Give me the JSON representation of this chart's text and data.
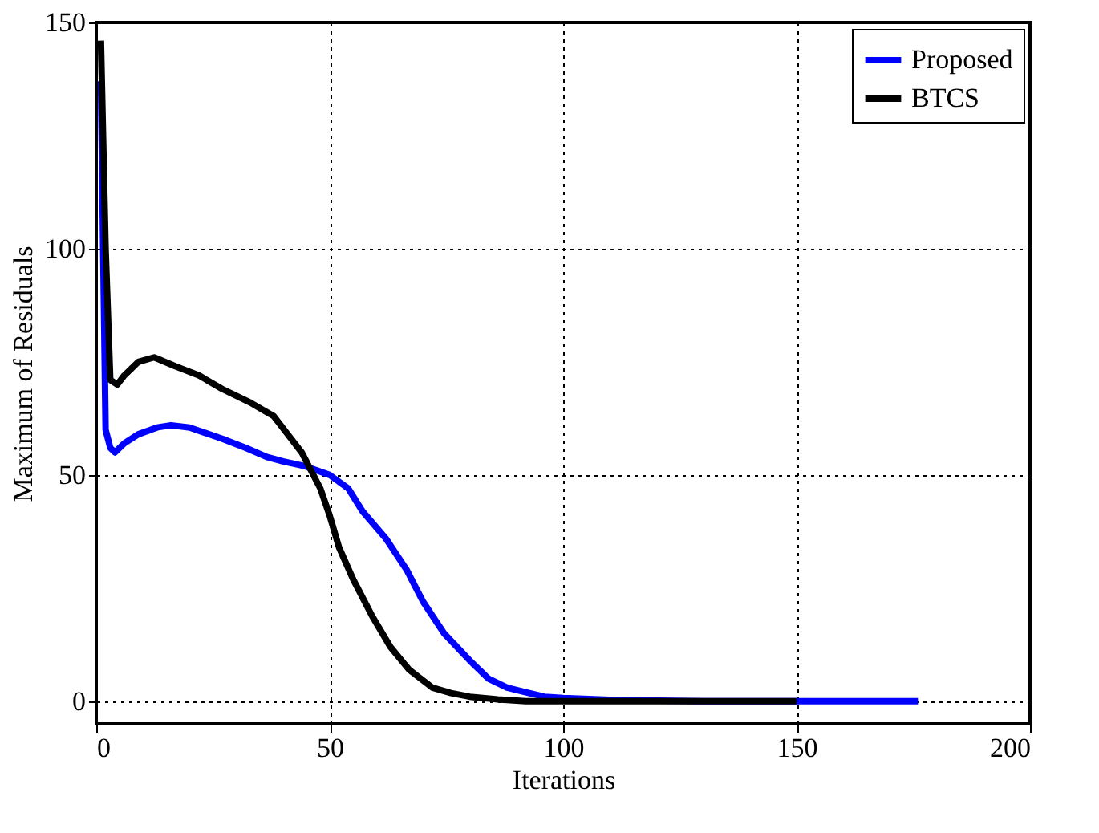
{
  "chart_data": {
    "type": "line",
    "xlabel": "Iterations",
    "ylabel": "Maximum of Residuals",
    "xlim": [
      0,
      200
    ],
    "ylim": [
      -5,
      150
    ],
    "xticks": [
      0,
      50,
      100,
      150,
      200
    ],
    "yticks": [
      0,
      50,
      100,
      150
    ],
    "grid": true,
    "legend": "top right",
    "line_style": "solid",
    "series": [
      {
        "name": "Proposed",
        "color": "#0000ff",
        "x": [
          1,
          2,
          3,
          4,
          6,
          9,
          13,
          16,
          20,
          27,
          32,
          36.5,
          40,
          44.5,
          50,
          54,
          57,
          62,
          66.5,
          70,
          74.5,
          80,
          84,
          88,
          92,
          96,
          100,
          110,
          130,
          150,
          176
        ],
        "values": [
          137,
          60,
          56,
          55,
          57,
          59,
          60.5,
          61,
          60.5,
          58,
          56,
          54,
          53,
          52,
          50,
          47,
          42,
          36,
          29,
          22,
          15,
          9,
          5,
          3,
          2,
          1,
          0.7,
          0.3,
          0,
          0,
          0
        ]
      },
      {
        "name": "BTCS",
        "color": "#000000",
        "x": [
          1,
          2,
          3,
          4.5,
          6,
          9,
          12.4,
          17,
          22,
          27,
          33,
          38,
          41,
          44,
          46,
          48,
          50,
          52,
          55,
          59,
          63,
          67,
          72,
          76,
          80,
          86,
          92,
          110,
          130,
          150
        ],
        "values": [
          146,
          100,
          71,
          70,
          72,
          75,
          76,
          74,
          72,
          69,
          66,
          63,
          59,
          55,
          51,
          47,
          41,
          34,
          27,
          19,
          12,
          7,
          3,
          1.8,
          1,
          0.4,
          0,
          0,
          0,
          0
        ]
      }
    ]
  }
}
